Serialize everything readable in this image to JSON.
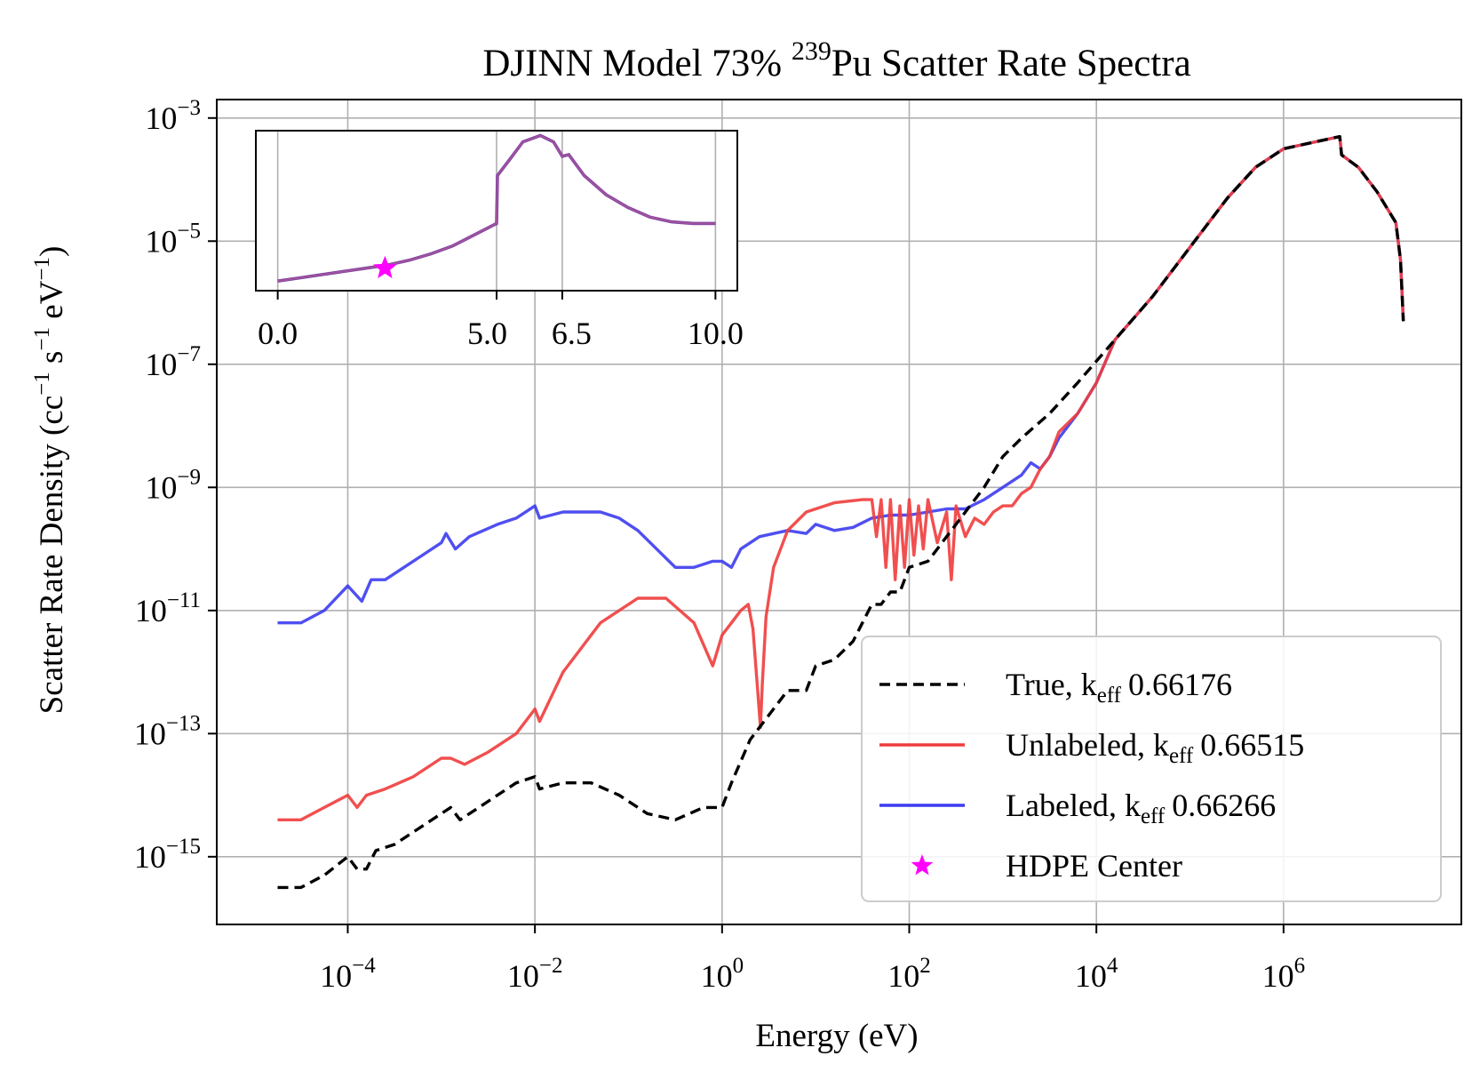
{
  "chart_data": {
    "type": "line",
    "title": {
      "prefix": "DJINN Model 73% ",
      "superscript": "239",
      "suffix": "Pu Scatter Rate Spectra"
    },
    "xlabel": "Energy (eV)",
    "ylabel": {
      "text": "Scatter Rate Density (cc",
      "exp1": "−1",
      "mid1": " s",
      "exp2": "−1",
      "mid2": " eV",
      "exp3": "−1",
      "end": ")"
    },
    "xscale": "log",
    "yscale": "log",
    "xlim_log10": [
      -5.4,
      7.9
    ],
    "ylim_log10": [
      -16.1,
      -2.7
    ],
    "grid": true,
    "x_ticks": [
      {
        "base": "10",
        "exp": "−4",
        "log": -4
      },
      {
        "base": "10",
        "exp": "−2",
        "log": -2
      },
      {
        "base": "10",
        "exp": "0",
        "log": 0
      },
      {
        "base": "10",
        "exp": "2",
        "log": 2
      },
      {
        "base": "10",
        "exp": "4",
        "log": 4
      },
      {
        "base": "10",
        "exp": "6",
        "log": 6
      }
    ],
    "y_ticks": [
      {
        "base": "10",
        "exp": "−3",
        "log": -3
      },
      {
        "base": "10",
        "exp": "−5",
        "log": -5
      },
      {
        "base": "10",
        "exp": "−7",
        "log": -7
      },
      {
        "base": "10",
        "exp": "−9",
        "log": -9
      },
      {
        "base": "10",
        "exp": "−11",
        "log": -11
      },
      {
        "base": "10",
        "exp": "−13",
        "log": -13
      },
      {
        "base": "10",
        "exp": "−15",
        "log": -15
      }
    ],
    "series": [
      {
        "name": "True",
        "keff_label": "eff",
        "keff_value": "0.66176",
        "color": "#000000",
        "dash": "true",
        "log_points": [
          [
            -4.75,
            -15.5
          ],
          [
            -4.5,
            -15.5
          ],
          [
            -4.25,
            -15.3
          ],
          [
            -4.0,
            -15.0
          ],
          [
            -3.9,
            -15.2
          ],
          [
            -3.8,
            -15.2
          ],
          [
            -3.7,
            -14.9
          ],
          [
            -3.5,
            -14.8
          ],
          [
            -3.3,
            -14.6
          ],
          [
            -3.0,
            -14.3
          ],
          [
            -2.9,
            -14.2
          ],
          [
            -2.8,
            -14.4
          ],
          [
            -2.5,
            -14.1
          ],
          [
            -2.2,
            -13.8
          ],
          [
            -2.0,
            -13.7
          ],
          [
            -1.95,
            -13.9
          ],
          [
            -1.7,
            -13.8
          ],
          [
            -1.4,
            -13.8
          ],
          [
            -1.1,
            -14.0
          ],
          [
            -0.8,
            -14.3
          ],
          [
            -0.5,
            -14.4
          ],
          [
            -0.2,
            -14.2
          ],
          [
            0.0,
            -14.2
          ],
          [
            0.1,
            -13.8
          ],
          [
            0.3,
            -13.1
          ],
          [
            0.5,
            -12.7
          ],
          [
            0.7,
            -12.3
          ],
          [
            0.8,
            -12.3
          ],
          [
            0.9,
            -12.3
          ],
          [
            1.0,
            -11.9
          ],
          [
            1.2,
            -11.8
          ],
          [
            1.4,
            -11.5
          ],
          [
            1.5,
            -11.2
          ],
          [
            1.6,
            -10.9
          ],
          [
            1.7,
            -10.9
          ],
          [
            1.8,
            -10.7
          ],
          [
            1.9,
            -10.7
          ],
          [
            2.0,
            -10.3
          ],
          [
            2.2,
            -10.2
          ],
          [
            2.4,
            -9.8
          ],
          [
            2.6,
            -9.4
          ],
          [
            2.8,
            -9.0
          ],
          [
            3.0,
            -8.5
          ],
          [
            3.2,
            -8.2
          ],
          [
            3.5,
            -7.8
          ],
          [
            3.8,
            -7.3
          ],
          [
            4.2,
            -6.6
          ],
          [
            4.6,
            -5.9
          ],
          [
            5.0,
            -5.1
          ],
          [
            5.4,
            -4.3
          ],
          [
            5.7,
            -3.8
          ],
          [
            6.0,
            -3.5
          ],
          [
            6.3,
            -3.4
          ],
          [
            6.6,
            -3.3
          ],
          [
            6.62,
            -3.6
          ],
          [
            6.8,
            -3.8
          ],
          [
            7.0,
            -4.2
          ],
          [
            7.2,
            -4.7
          ],
          [
            7.25,
            -5.3
          ],
          [
            7.28,
            -6.3
          ]
        ]
      },
      {
        "name": "Unlabeled",
        "keff_label": "eff",
        "keff_value": "0.66515",
        "color": "#f03c3c",
        "dash": "false",
        "log_points": [
          [
            -4.75,
            -14.4
          ],
          [
            -4.5,
            -14.4
          ],
          [
            -4.25,
            -14.2
          ],
          [
            -4.0,
            -14.0
          ],
          [
            -3.9,
            -14.2
          ],
          [
            -3.8,
            -14.0
          ],
          [
            -3.6,
            -13.9
          ],
          [
            -3.3,
            -13.7
          ],
          [
            -3.0,
            -13.4
          ],
          [
            -2.9,
            -13.4
          ],
          [
            -2.75,
            -13.5
          ],
          [
            -2.5,
            -13.3
          ],
          [
            -2.2,
            -13.0
          ],
          [
            -2.0,
            -12.6
          ],
          [
            -1.95,
            -12.8
          ],
          [
            -1.7,
            -12.0
          ],
          [
            -1.3,
            -11.2
          ],
          [
            -0.9,
            -10.8
          ],
          [
            -0.6,
            -10.8
          ],
          [
            -0.3,
            -11.2
          ],
          [
            -0.1,
            -11.9
          ],
          [
            0.0,
            -11.4
          ],
          [
            0.1,
            -11.2
          ],
          [
            0.2,
            -11.0
          ],
          [
            0.28,
            -10.9
          ],
          [
            0.33,
            -11.3
          ],
          [
            0.38,
            -12.3
          ],
          [
            0.41,
            -12.9
          ],
          [
            0.43,
            -12.2
          ],
          [
            0.47,
            -11.1
          ],
          [
            0.55,
            -10.3
          ],
          [
            0.7,
            -9.7
          ],
          [
            0.9,
            -9.4
          ],
          [
            1.2,
            -9.25
          ],
          [
            1.5,
            -9.2
          ],
          [
            1.6,
            -9.2
          ],
          [
            1.65,
            -9.8
          ],
          [
            1.7,
            -9.2
          ],
          [
            1.75,
            -10.3
          ],
          [
            1.8,
            -9.2
          ],
          [
            1.85,
            -10.5
          ],
          [
            1.9,
            -9.3
          ],
          [
            1.95,
            -10.3
          ],
          [
            2.0,
            -9.2
          ],
          [
            2.05,
            -10.1
          ],
          [
            2.1,
            -9.3
          ],
          [
            2.15,
            -10.0
          ],
          [
            2.2,
            -9.2
          ],
          [
            2.3,
            -9.9
          ],
          [
            2.4,
            -9.4
          ],
          [
            2.45,
            -10.5
          ],
          [
            2.5,
            -9.3
          ],
          [
            2.6,
            -9.8
          ],
          [
            2.7,
            -9.5
          ],
          [
            2.8,
            -9.6
          ],
          [
            2.9,
            -9.4
          ],
          [
            3.0,
            -9.3
          ],
          [
            3.1,
            -9.3
          ],
          [
            3.2,
            -9.1
          ],
          [
            3.3,
            -9.0
          ],
          [
            3.4,
            -8.7
          ],
          [
            3.5,
            -8.5
          ],
          [
            3.6,
            -8.1
          ],
          [
            3.8,
            -7.8
          ],
          [
            4.0,
            -7.3
          ],
          [
            4.2,
            -6.6
          ],
          [
            4.6,
            -5.9
          ],
          [
            5.0,
            -5.1
          ],
          [
            5.4,
            -4.3
          ],
          [
            5.7,
            -3.8
          ],
          [
            6.0,
            -3.5
          ],
          [
            6.3,
            -3.4
          ],
          [
            6.6,
            -3.3
          ],
          [
            6.62,
            -3.6
          ],
          [
            6.8,
            -3.8
          ],
          [
            7.0,
            -4.2
          ],
          [
            7.2,
            -4.7
          ],
          [
            7.25,
            -5.3
          ],
          [
            7.28,
            -6.3
          ]
        ]
      },
      {
        "name": "Labeled",
        "keff_label": "eff",
        "keff_value": "0.66266",
        "color": "#3c3cf0",
        "dash": "false",
        "log_points": [
          [
            -4.75,
            -11.2
          ],
          [
            -4.5,
            -11.2
          ],
          [
            -4.25,
            -11.0
          ],
          [
            -4.0,
            -10.6
          ],
          [
            -3.85,
            -10.85
          ],
          [
            -3.75,
            -10.5
          ],
          [
            -3.6,
            -10.5
          ],
          [
            -3.4,
            -10.3
          ],
          [
            -3.2,
            -10.1
          ],
          [
            -3.0,
            -9.9
          ],
          [
            -2.95,
            -9.75
          ],
          [
            -2.85,
            -10.0
          ],
          [
            -2.7,
            -9.8
          ],
          [
            -2.4,
            -9.6
          ],
          [
            -2.2,
            -9.5
          ],
          [
            -2.0,
            -9.3
          ],
          [
            -1.95,
            -9.5
          ],
          [
            -1.7,
            -9.4
          ],
          [
            -1.5,
            -9.4
          ],
          [
            -1.3,
            -9.4
          ],
          [
            -1.1,
            -9.5
          ],
          [
            -0.9,
            -9.7
          ],
          [
            -0.7,
            -10.0
          ],
          [
            -0.5,
            -10.3
          ],
          [
            -0.3,
            -10.3
          ],
          [
            -0.1,
            -10.2
          ],
          [
            0.0,
            -10.2
          ],
          [
            0.1,
            -10.3
          ],
          [
            0.2,
            -10.0
          ],
          [
            0.4,
            -9.8
          ],
          [
            0.7,
            -9.7
          ],
          [
            0.9,
            -9.75
          ],
          [
            1.0,
            -9.6
          ],
          [
            1.2,
            -9.7
          ],
          [
            1.4,
            -9.65
          ],
          [
            1.6,
            -9.5
          ],
          [
            1.8,
            -9.45
          ],
          [
            2.0,
            -9.45
          ],
          [
            2.2,
            -9.4
          ],
          [
            2.4,
            -9.35
          ],
          [
            2.6,
            -9.35
          ],
          [
            2.8,
            -9.2
          ],
          [
            3.0,
            -9.0
          ],
          [
            3.2,
            -8.8
          ],
          [
            3.3,
            -8.6
          ],
          [
            3.4,
            -8.7
          ],
          [
            3.5,
            -8.5
          ],
          [
            3.6,
            -8.2
          ],
          [
            3.8,
            -7.8
          ],
          [
            4.0,
            -7.3
          ],
          [
            4.2,
            -6.6
          ],
          [
            4.6,
            -5.9
          ],
          [
            5.0,
            -5.1
          ],
          [
            5.4,
            -4.3
          ],
          [
            5.7,
            -3.8
          ],
          [
            6.0,
            -3.5
          ],
          [
            6.3,
            -3.4
          ],
          [
            6.6,
            -3.3
          ],
          [
            6.62,
            -3.6
          ],
          [
            6.8,
            -3.8
          ],
          [
            7.0,
            -4.2
          ],
          [
            7.2,
            -4.7
          ],
          [
            7.25,
            -5.3
          ],
          [
            7.28,
            -6.3
          ]
        ]
      }
    ],
    "legend": {
      "placement": "lower-right",
      "k_letter": "k",
      "separator": ", ",
      "marker_entry": {
        "name": "HDPE Center",
        "marker": "star",
        "color": "#ff00ff"
      }
    },
    "inset": {
      "placement": "upper-left",
      "xlim": [
        -0.5,
        10.5
      ],
      "ylim": [
        0,
        1
      ],
      "x_ticks": [
        {
          "value": 0,
          "label": "0.0"
        },
        {
          "value": 5,
          "label": "5.0"
        },
        {
          "value": 6.5,
          "label": "6.5"
        },
        {
          "value": 10,
          "label": "10.0"
        }
      ],
      "series_colors": [
        "#7a2e8e",
        "#4b3bb0",
        "#b0559a"
      ],
      "curve": [
        [
          0,
          0.06
        ],
        [
          0.5,
          0.08
        ],
        [
          1,
          0.1
        ],
        [
          1.5,
          0.12
        ],
        [
          2,
          0.14
        ],
        [
          2.5,
          0.16
        ],
        [
          3,
          0.19
        ],
        [
          3.5,
          0.23
        ],
        [
          4,
          0.28
        ],
        [
          4.5,
          0.35
        ],
        [
          5,
          0.42
        ],
        [
          5.02,
          0.72
        ],
        [
          5.3,
          0.82
        ],
        [
          5.6,
          0.93
        ],
        [
          6.0,
          0.97
        ],
        [
          6.3,
          0.93
        ],
        [
          6.5,
          0.84
        ],
        [
          6.65,
          0.85
        ],
        [
          7,
          0.72
        ],
        [
          7.5,
          0.6
        ],
        [
          8,
          0.52
        ],
        [
          8.5,
          0.46
        ],
        [
          9,
          0.43
        ],
        [
          9.5,
          0.42
        ],
        [
          10,
          0.42
        ]
      ],
      "marker": {
        "x": 2.45,
        "y": 0.14,
        "color": "#ff00ff"
      }
    }
  }
}
